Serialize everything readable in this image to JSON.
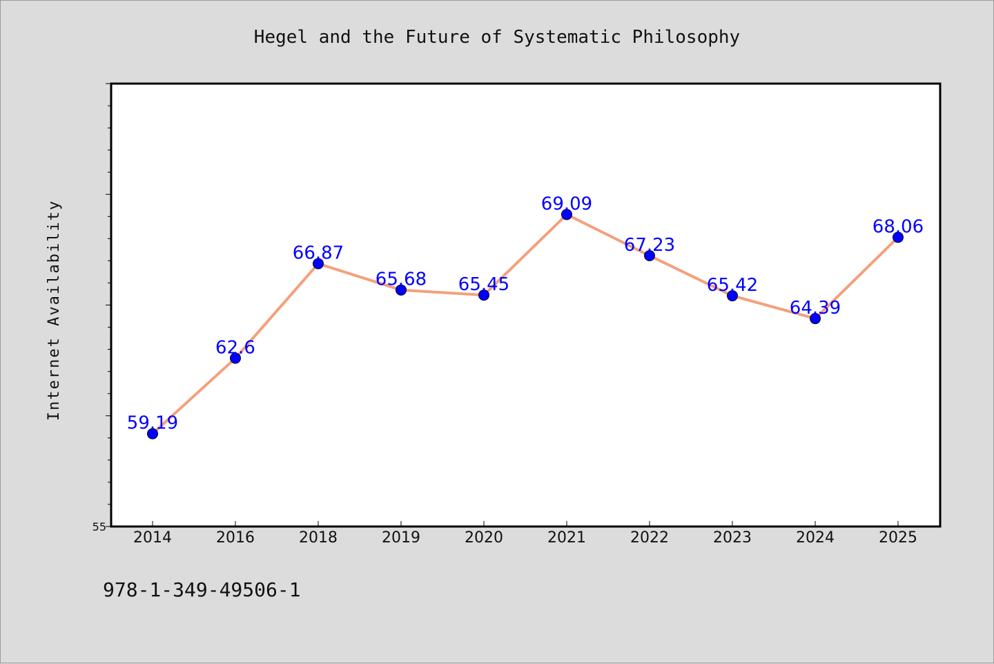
{
  "chart_data": {
    "type": "line",
    "title": "Hegel and the Future of Systematic Philosophy",
    "xlabel": "",
    "ylabel": "Internet Availability",
    "categories": [
      "2014",
      "2016",
      "2018",
      "2019",
      "2020",
      "2021",
      "2022",
      "2023",
      "2024",
      "2025"
    ],
    "series": [
      {
        "values": [
          59.19,
          62.6,
          66.87,
          65.68,
          65.45,
          69.09,
          67.23,
          65.42,
          64.39,
          68.06
        ],
        "labels": [
          "59.19",
          "62.6",
          "66.87",
          "65.68",
          "65.45",
          "69.09",
          "67.23",
          "65.42",
          "64.39",
          "68.06"
        ],
        "line_color": "#f4a07c",
        "marker_color": "#0000ff",
        "label_color": "#0000ff"
      }
    ],
    "ylim": [
      55,
      75
    ],
    "ytick_labels": [
      "55"
    ],
    "grid": false,
    "legend": "none"
  },
  "footer": {
    "isbn": "978-1-349-49506-1"
  },
  "colors": {
    "background": "#dcdcdc",
    "plot_background": "#ffffff",
    "axis": "#000000"
  }
}
